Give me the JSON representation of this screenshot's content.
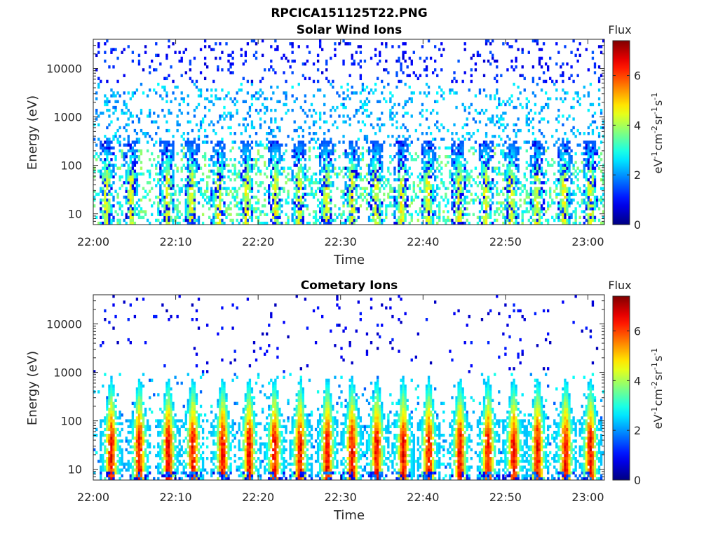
{
  "figure": {
    "title": "RPCICA151125T22.PNG"
  },
  "colorbar": {
    "title": "Flux",
    "label": "eV",
    "label_parts": [
      "eV",
      "-1",
      "cm",
      "-2",
      "sr",
      "-1",
      "s",
      "-1"
    ],
    "range": [
      0,
      7.4
    ],
    "ticks": [
      0,
      2,
      4,
      6
    ],
    "colormap": "jet"
  },
  "chart_data": [
    {
      "type": "heatmap",
      "title": "Solar Wind Ions",
      "xlabel": "Time",
      "ylabel": "Energy (eV)",
      "x_range": [
        "22:00",
        "23:02"
      ],
      "x_ticks": [
        "22:00",
        "22:10",
        "22:20",
        "22:30",
        "22:40",
        "22:50",
        "23:00"
      ],
      "y_scale": "log",
      "y_range": [
        6,
        40000
      ],
      "y_ticks": [
        10,
        100,
        1000,
        10000
      ],
      "z_label": "Flux",
      "z_range": [
        0,
        7.4
      ],
      "pattern": "sparse scattered counts at all energies; periodic bursts below ~300 eV roughly every 3.2 min",
      "bursts_minutes": [
        1.6,
        4.6,
        9.0,
        11.9,
        15.2,
        18.6,
        22.1,
        25.0,
        28.3,
        31.4,
        34.3,
        37.4,
        40.6,
        44.4,
        47.6,
        50.7,
        53.8,
        57.1,
        60.3
      ],
      "burst_peak_flux": 5.0
    },
    {
      "type": "heatmap",
      "title": "Cometary Ions",
      "xlabel": "Time",
      "ylabel": "Energy (eV)",
      "x_range": [
        "22:00",
        "23:02"
      ],
      "x_ticks": [
        "22:00",
        "22:10",
        "22:20",
        "22:30",
        "22:40",
        "22:50",
        "23:00"
      ],
      "y_scale": "log",
      "y_range": [
        6,
        40000
      ],
      "y_ticks": [
        10,
        100,
        1000,
        10000
      ],
      "z_label": "Flux",
      "z_range": [
        0,
        7.4
      ],
      "pattern": "periodic plumes peaking at 10-40 eV roughly every 3.2 min, extending up to ~500 eV; sparse low counts above 1 keV",
      "bursts_minutes": [
        2.2,
        5.6,
        9.1,
        12.1,
        15.7,
        18.9,
        22.0,
        25.1,
        28.4,
        31.4,
        34.4,
        37.6,
        40.7,
        44.5,
        47.9,
        51.0,
        53.9,
        57.3,
        60.3
      ],
      "burst_peak_flux": 7.0
    }
  ]
}
